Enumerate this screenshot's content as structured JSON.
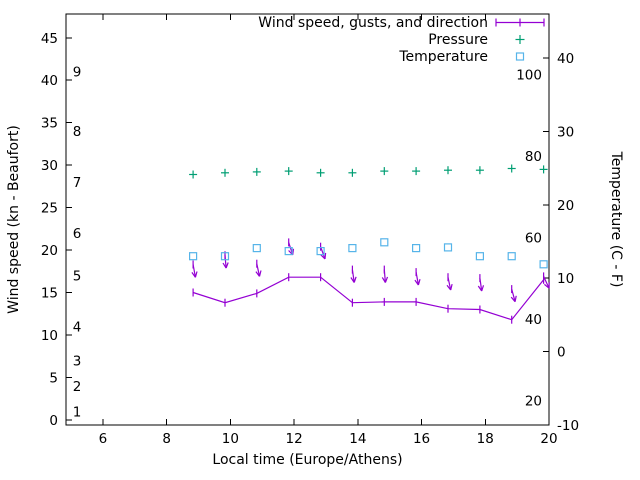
{
  "page": {
    "background": "#ffffff"
  },
  "chart_data": {
    "type": "line",
    "title": "",
    "legend": {
      "position": "top-right-inside",
      "entries": [
        {
          "label": "Wind speed, gusts, and direction",
          "color": "#9400d3",
          "marker": "line-with-tick-points"
        },
        {
          "label": "Pressure",
          "color": "#009e73",
          "marker": "plus"
        },
        {
          "label": "Temperature",
          "color": "#56b4e9",
          "marker": "open-square"
        }
      ]
    },
    "x_axis": {
      "label": "Local time (Europe/Athens)",
      "range": [
        4.84,
        20
      ],
      "ticks": [
        6,
        8,
        10,
        12,
        14,
        16,
        18,
        20
      ]
    },
    "y_axis_left": {
      "label": "Wind speed (kn - Beaufort)",
      "range": [
        -0.6,
        47.8
      ],
      "ticks": [
        0,
        5,
        10,
        15,
        20,
        25,
        30,
        35,
        40,
        45
      ],
      "beaufort_scale_labels": [
        {
          "label": "1",
          "kn": 1
        },
        {
          "label": "2",
          "kn": 4
        },
        {
          "label": "3",
          "kn": 7
        },
        {
          "label": "4",
          "kn": 11
        },
        {
          "label": "5",
          "kn": 17
        },
        {
          "label": "6",
          "kn": 22
        },
        {
          "label": "7",
          "kn": 28
        },
        {
          "label": "8",
          "kn": 34
        },
        {
          "label": "9",
          "kn": 41
        }
      ]
    },
    "y_axis_right": {
      "label": "Temperature (C - F)",
      "range": [
        -10,
        46
      ],
      "ticks": [
        -10,
        0,
        10,
        20,
        30,
        40
      ],
      "fahrenheit_scale_labels": [
        {
          "label": "20",
          "c": -6.67
        },
        {
          "label": "40",
          "c": 4.44
        },
        {
          "label": "60",
          "c": 15.56
        },
        {
          "label": "80",
          "c": 26.67
        },
        {
          "label": "100",
          "c": 37.78
        }
      ]
    },
    "series": {
      "time_hours": [
        8.83,
        9.83,
        10.83,
        11.83,
        12.83,
        13.83,
        14.83,
        15.83,
        16.83,
        17.83,
        18.83,
        19.83
      ],
      "wind_speed_kn": [
        15.0,
        13.8,
        14.9,
        16.8,
        16.8,
        13.8,
        13.9,
        13.9,
        13.1,
        13.0,
        11.8,
        16.5
      ],
      "wind_gust_kn": [
        18.3,
        19.4,
        18.4,
        20.9,
        20.4,
        17.7,
        17.7,
        17.4,
        16.8,
        16.7,
        15.4,
        16.9
      ],
      "wind_arrow_tilt_deg": [
        10,
        5,
        12,
        18,
        20,
        8,
        5,
        10,
        12,
        8,
        15,
        25
      ],
      "pressure_plotted_left_axis": [
        28.9,
        29.1,
        29.2,
        29.3,
        29.1,
        29.1,
        29.3,
        29.3,
        29.4,
        29.4,
        29.6,
        29.5
      ],
      "temperature_c": [
        13.0,
        13.0,
        14.1,
        13.7,
        13.7,
        14.1,
        14.9,
        14.1,
        14.2,
        13.0,
        13.0,
        11.9
      ]
    }
  }
}
